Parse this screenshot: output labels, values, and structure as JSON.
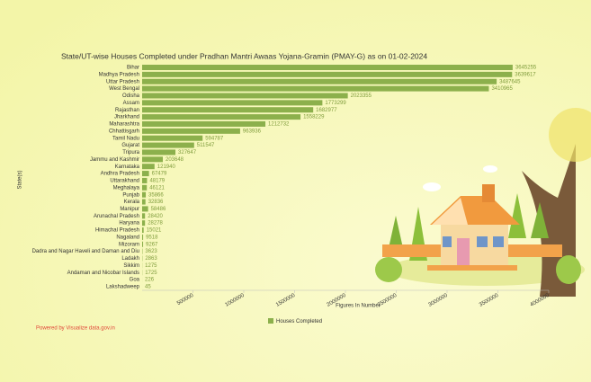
{
  "chart_data": {
    "type": "bar",
    "orientation": "horizontal",
    "title": "State/UT-wise Houses Completed under Pradhan Mantri Awaas Yojana-Gramin (PMAY-G) as on 01-02-2024",
    "x_label": "Figures In Number",
    "y_label": "State(s)",
    "footer": "Powered by Visualize data.gov.in",
    "categories": [
      "Bihar",
      "Madhya Pradesh",
      "Uttar Pradesh",
      "West Bengal",
      "Odisha",
      "Assam",
      "Rajasthan",
      "Jharkhand",
      "Maharashtra",
      "Chhattisgarh",
      "Tamil Nadu",
      "Gujarat",
      "Tripura",
      "Jammu and Kashmir",
      "Karnataka",
      "Andhra Pradesh",
      "Uttarakhand",
      "Meghalaya",
      "Punjab",
      "Kerala",
      "Manipur",
      "Arunachal Pradesh",
      "Haryana",
      "Himachal Pradesh",
      "Nagaland",
      "Mizoram",
      "Dadra and Nagar Haveli and Daman and Diu",
      "Ladakh",
      "Sikkim",
      "Andaman and Nicobar Islands",
      "Goa",
      "Lakshadweep"
    ],
    "series": [
      {
        "name": "Houses Completed",
        "color": "#8cb04c",
        "values": [
          3645255,
          3639617,
          3487645,
          3410965,
          2023355,
          1773299,
          1682977,
          1558229,
          1212732,
          963936,
          594787,
          511547,
          327647,
          203648,
          121940,
          67479,
          48179,
          46121,
          35866,
          32836,
          58486,
          28420,
          28278,
          15021,
          9518,
          9267,
          3623,
          2863,
          1275,
          1725,
          226,
          45
        ]
      }
    ],
    "xlim": [
      0,
      4000000
    ],
    "xticks": [
      500000,
      1000000,
      1500000,
      2000000,
      2500000,
      3000000,
      3500000,
      4000000
    ],
    "legend": "bottom"
  }
}
